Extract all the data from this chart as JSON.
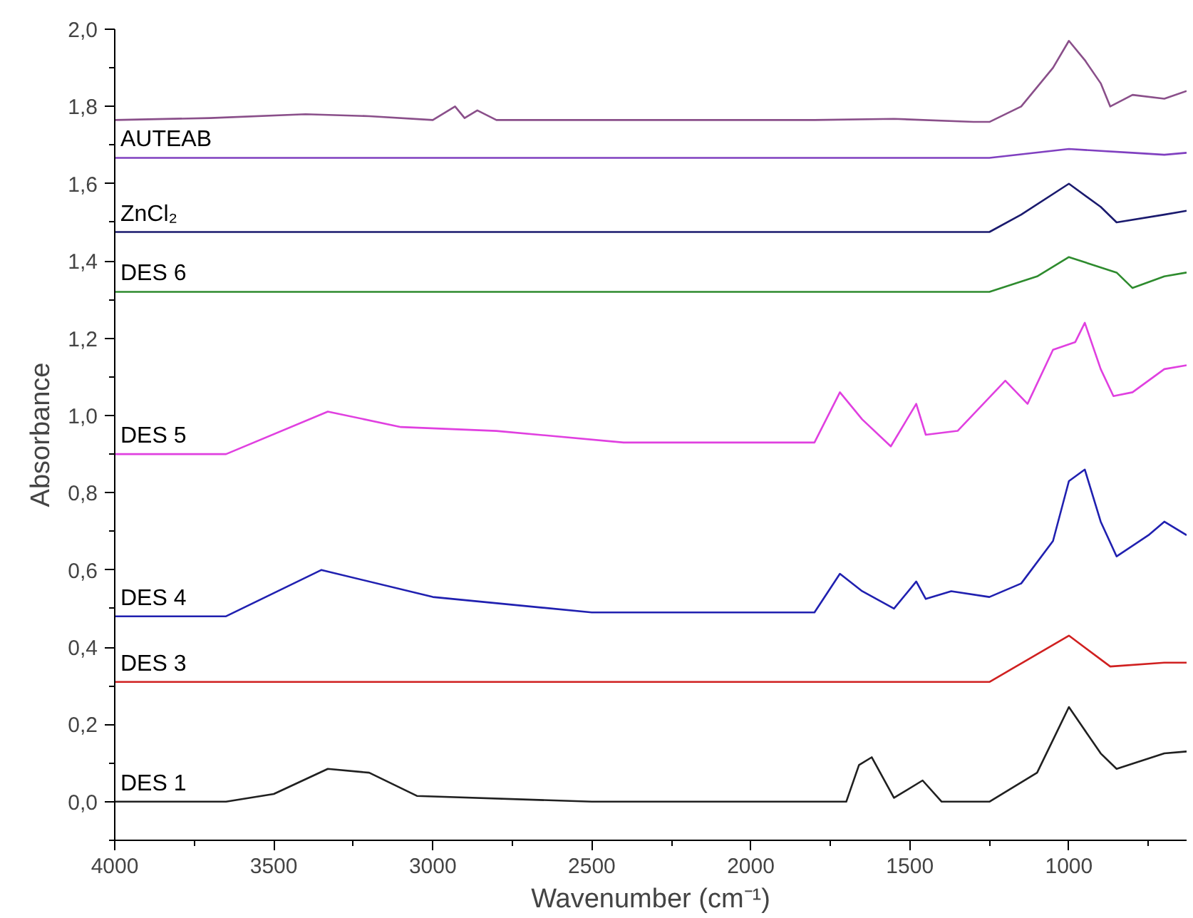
{
  "chart_data": {
    "type": "line",
    "xlabel": "Wavenumber (cm⁻¹)",
    "ylabel": "Absorbance",
    "xlim": [
      4000,
      630
    ],
    "ylim": [
      -0.1,
      2.0
    ],
    "xticks": [
      4000,
      {
        "value": 3750,
        "label": null
      },
      3500,
      {
        "value": 3250,
        "label": null
      },
      3000,
      {
        "value": 2750,
        "label": null
      },
      2500,
      {
        "value": 2250,
        "label": null
      },
      2000,
      {
        "value": 1750,
        "label": null
      },
      1500,
      {
        "value": 1250,
        "label": null
      },
      1000,
      {
        "value": 750,
        "label": null
      }
    ],
    "yticks": [
      {
        "value": -0.1,
        "label": null
      },
      {
        "value": 0,
        "label": "0,0"
      },
      {
        "value": 0.1,
        "label": null
      },
      {
        "value": 0.2,
        "label": "0,2"
      },
      {
        "value": 0.3,
        "label": null
      },
      {
        "value": 0.4,
        "label": "0,4"
      },
      {
        "value": 0.5,
        "label": null
      },
      {
        "value": 0.6,
        "label": "0,6"
      },
      {
        "value": 0.7,
        "label": null
      },
      {
        "value": 0.8,
        "label": "0,8"
      },
      {
        "value": 0.9,
        "label": null
      },
      {
        "value": 1.0,
        "label": "1,0"
      },
      {
        "value": 1.1,
        "label": null
      },
      {
        "value": 1.2,
        "label": "1,2"
      },
      {
        "value": 1.3,
        "label": null
      },
      {
        "value": 1.4,
        "label": "1,4"
      },
      {
        "value": 1.5,
        "label": null
      },
      {
        "value": 1.6,
        "label": "1,6"
      },
      {
        "value": 1.7,
        "label": null
      },
      {
        "value": 1.8,
        "label": "1,8"
      },
      {
        "value": 1.9,
        "label": null
      },
      {
        "value": 2.0,
        "label": "2,0"
      }
    ],
    "grid": false,
    "legend": false,
    "marker": "none",
    "line_style": "solid",
    "series": [
      {
        "color": "#8a4f8a",
        "x": [
          4000,
          3700,
          3400,
          3200,
          3000,
          2930,
          2900,
          2860,
          2800,
          2500,
          2200,
          2000,
          1800,
          1550,
          1300,
          1250,
          1150,
          1050,
          1000,
          950,
          900,
          870,
          800,
          700,
          630
        ],
        "values": [
          1.765,
          1.77,
          1.78,
          1.775,
          1.765,
          1.8,
          1.77,
          1.79,
          1.765,
          1.765,
          1.765,
          1.765,
          1.765,
          1.768,
          1.76,
          1.76,
          1.8,
          1.9,
          1.97,
          1.92,
          1.86,
          1.8,
          1.83,
          1.82,
          1.84
        ]
      },
      {
        "name": "AUTEAB",
        "color": "#8040c0",
        "x": [
          4000,
          3000,
          2000,
          1250,
          1000,
          800,
          700,
          630
        ],
        "values": [
          1.667,
          1.667,
          1.667,
          1.667,
          1.69,
          1.68,
          1.675,
          1.68
        ]
      },
      {
        "name": "ZnCl₂",
        "color": "#1a1a6e",
        "x": [
          4000,
          3000,
          2000,
          1250,
          1150,
          1000,
          900,
          850,
          700,
          630
        ],
        "values": [
          1.475,
          1.475,
          1.475,
          1.475,
          1.52,
          1.6,
          1.54,
          1.5,
          1.52,
          1.53
        ]
      },
      {
        "name": "DES 6",
        "color": "#2e8b2e",
        "x": [
          4000,
          3000,
          2000,
          1250,
          1100,
          1000,
          850,
          800,
          700,
          630
        ],
        "values": [
          1.32,
          1.32,
          1.32,
          1.32,
          1.36,
          1.41,
          1.37,
          1.33,
          1.36,
          1.37
        ]
      },
      {
        "name": "DES 5",
        "color": "#e040e0",
        "x": [
          4000,
          3650,
          3330,
          3100,
          2800,
          2400,
          2000,
          1800,
          1720,
          1650,
          1560,
          1480,
          1450,
          1350,
          1200,
          1130,
          1050,
          980,
          950,
          900,
          860,
          800,
          700,
          630
        ],
        "values": [
          0.9,
          0.9,
          1.01,
          0.97,
          0.96,
          0.93,
          0.93,
          0.93,
          1.06,
          0.99,
          0.92,
          1.03,
          0.95,
          0.96,
          1.09,
          1.03,
          1.17,
          1.19,
          1.24,
          1.12,
          1.05,
          1.06,
          1.12,
          1.13
        ]
      },
      {
        "name": "DES 4",
        "color": "#2020b0",
        "x": [
          4000,
          3650,
          3350,
          3000,
          2500,
          2000,
          1800,
          1720,
          1650,
          1550,
          1480,
          1450,
          1370,
          1250,
          1150,
          1050,
          1000,
          950,
          900,
          850,
          750,
          700,
          630
        ],
        "values": [
          0.48,
          0.48,
          0.6,
          0.53,
          0.49,
          0.49,
          0.49,
          0.59,
          0.545,
          0.5,
          0.57,
          0.525,
          0.545,
          0.53,
          0.565,
          0.675,
          0.83,
          0.86,
          0.725,
          0.635,
          0.69,
          0.725,
          0.69
        ]
      },
      {
        "name": "DES 3",
        "color": "#d02020",
        "x": [
          4000,
          3000,
          2000,
          1250,
          1000,
          870,
          700,
          630
        ],
        "values": [
          0.31,
          0.31,
          0.31,
          0.31,
          0.43,
          0.35,
          0.36,
          0.36
        ]
      },
      {
        "name": "DES 1",
        "color": "#202020",
        "x": [
          4000,
          3650,
          3500,
          3330,
          3200,
          3050,
          2500,
          2000,
          1700,
          1660,
          1620,
          1550,
          1460,
          1400,
          1250,
          1100,
          1000,
          900,
          850,
          700,
          630
        ],
        "values": [
          0.0,
          0.0,
          0.02,
          0.085,
          0.075,
          0.015,
          0.0,
          0.0,
          0.0,
          0.095,
          0.115,
          0.01,
          0.055,
          0.0,
          0.0,
          0.075,
          0.245,
          0.125,
          0.085,
          0.125,
          0.13
        ]
      }
    ]
  }
}
